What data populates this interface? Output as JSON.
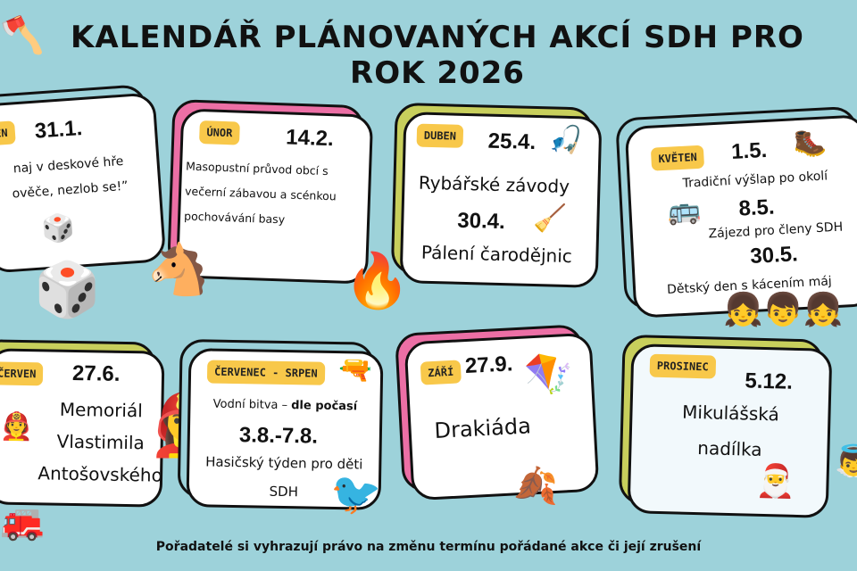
{
  "title": {
    "line1": "KALENDÁŘ PLÁNOVANÝCH AKCÍ SDH PRO",
    "line2": "ROK 2026"
  },
  "cards": [
    {
      "month": "DEN",
      "date": "31.1.",
      "lines": [
        "naj v deskové hře",
        "ověče, nezlob se!”"
      ]
    },
    {
      "month": "ÚNOR",
      "date": "14.2.",
      "lines": [
        "Masopustní průvod obcí s",
        "večerní zábavou a scénkou",
        "pochovávání basy"
      ]
    },
    {
      "month": "DUBEN",
      "date": "25.4.",
      "lines": [
        "Rybářské závody"
      ],
      "date2": "30.4.",
      "lines2": [
        "Pálení čarodějnic"
      ]
    },
    {
      "month": "KVĚTEN",
      "date": "1.5.",
      "lines": [
        "Tradiční výšlap po okolí"
      ],
      "date2": "8.5.",
      "lines2": [
        "Zájezd pro členy SDH"
      ],
      "date3": "30.5.",
      "lines3": [
        "Dětský den s kácením máj"
      ]
    },
    {
      "month": "ČERVEN",
      "date": "27.6.",
      "lines": [
        "Memoriál",
        "Vlastimila",
        "Antošovského"
      ]
    },
    {
      "month": "ČERVENEC - SRPEN",
      "lines": [
        "Vodní bitva – "
      ],
      "bold": "dle počasí",
      "date2": "3.8.-7.8.",
      "lines2": [
        "Hasičský týden pro děti",
        "SDH"
      ]
    },
    {
      "month": "ZÁŘÍ",
      "date": "27.9.",
      "lines": [
        "Drakiáda"
      ]
    },
    {
      "month": "PROSINEC",
      "date": "5.12.",
      "lines": [
        "Mikulášská",
        "nadílka"
      ]
    }
  ],
  "colors": {
    "background": "#9dd2da",
    "tag": "#f8c84a",
    "pink": "#ec6fa5",
    "olive": "#c8cf5c",
    "teal": "#9dd2da"
  },
  "footer": "Pořadatelé si vyhrazují právo na změnu termínu pořádané akce či její zrušení"
}
